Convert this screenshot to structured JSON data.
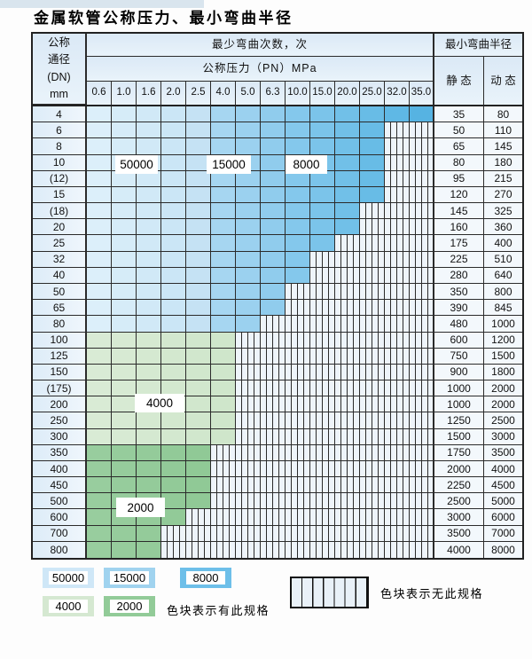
{
  "title": "金属软管公称压力、最小弯曲半径",
  "table": {
    "dn_header_lines": [
      "公称",
      "通径",
      "(DN)",
      "mm"
    ],
    "bend_times_header": "最少弯曲次数，次",
    "pn_header": "公称压力（PN）MPa",
    "radius_header": "最小弯曲半径",
    "static_label": "静 态",
    "dynamic_label": "动 态",
    "pressures": [
      "0.6",
      "1.0",
      "1.6",
      "2.0",
      "2.5",
      "4.0",
      "5.0",
      "6.3",
      "10.0",
      "15.0",
      "20.0",
      "25.0",
      "32.0",
      "35.0"
    ],
    "rows": [
      {
        "dn": "4",
        "max_col": 13,
        "zone": "blue",
        "static": "35",
        "dynamic": "80"
      },
      {
        "dn": "6",
        "max_col": 11,
        "zone": "blue",
        "static": "50",
        "dynamic": "110"
      },
      {
        "dn": "8",
        "max_col": 11,
        "zone": "blue",
        "static": "65",
        "dynamic": "145"
      },
      {
        "dn": "10",
        "max_col": 11,
        "zone": "blue",
        "static": "80",
        "dynamic": "180"
      },
      {
        "dn": "(12)",
        "max_col": 11,
        "zone": "blue",
        "static": "95",
        "dynamic": "215"
      },
      {
        "dn": "15",
        "max_col": 11,
        "zone": "blue",
        "static": "120",
        "dynamic": "270"
      },
      {
        "dn": "(18)",
        "max_col": 10,
        "zone": "blue",
        "static": "145",
        "dynamic": "325"
      },
      {
        "dn": "20",
        "max_col": 10,
        "zone": "blue",
        "static": "160",
        "dynamic": "360"
      },
      {
        "dn": "25",
        "max_col": 9,
        "zone": "blue",
        "static": "175",
        "dynamic": "400"
      },
      {
        "dn": "32",
        "max_col": 8,
        "zone": "blue",
        "static": "225",
        "dynamic": "510"
      },
      {
        "dn": "40",
        "max_col": 8,
        "zone": "blue",
        "static": "280",
        "dynamic": "640"
      },
      {
        "dn": "50",
        "max_col": 7,
        "zone": "blue",
        "static": "350",
        "dynamic": "800"
      },
      {
        "dn": "65",
        "max_col": 7,
        "zone": "blue",
        "static": "390",
        "dynamic": "845"
      },
      {
        "dn": "80",
        "max_col": 6,
        "zone": "blue",
        "static": "480",
        "dynamic": "1000"
      },
      {
        "dn": "100",
        "max_col": 5,
        "zone": "green_light",
        "static": "600",
        "dynamic": "1200"
      },
      {
        "dn": "125",
        "max_col": 5,
        "zone": "green_light",
        "static": "750",
        "dynamic": "1500"
      },
      {
        "dn": "150",
        "max_col": 5,
        "zone": "green_light",
        "static": "900",
        "dynamic": "1800"
      },
      {
        "dn": "(175)",
        "max_col": 5,
        "zone": "green_light",
        "static": "1000",
        "dynamic": "2000"
      },
      {
        "dn": "200",
        "max_col": 5,
        "zone": "green_light",
        "static": "1000",
        "dynamic": "2000"
      },
      {
        "dn": "250",
        "max_col": 5,
        "zone": "green_light",
        "static": "1250",
        "dynamic": "2500"
      },
      {
        "dn": "300",
        "max_col": 5,
        "zone": "green_light",
        "static": "1500",
        "dynamic": "3000"
      },
      {
        "dn": "350",
        "max_col": 4,
        "zone": "green_dark",
        "static": "1750",
        "dynamic": "3500"
      },
      {
        "dn": "400",
        "max_col": 4,
        "zone": "green_dark",
        "static": "2000",
        "dynamic": "4000"
      },
      {
        "dn": "450",
        "max_col": 4,
        "zone": "green_dark",
        "static": "2250",
        "dynamic": "4500"
      },
      {
        "dn": "500",
        "max_col": 4,
        "zone": "green_dark",
        "static": "2500",
        "dynamic": "5000"
      },
      {
        "dn": "600",
        "max_col": 3,
        "zone": "green_dark",
        "static": "3000",
        "dynamic": "6000"
      },
      {
        "dn": "700",
        "max_col": 2,
        "zone": "green_dark",
        "static": "3500",
        "dynamic": "7000"
      },
      {
        "dn": "800",
        "max_col": 2,
        "zone": "green_dark",
        "static": "4000",
        "dynamic": "8000"
      }
    ]
  },
  "zone_labels": [
    "50000",
    "15000",
    "8000",
    "4000",
    "2000"
  ],
  "legend": {
    "has_spec_items": [
      {
        "label": "50000",
        "color": "#cfe7f7"
      },
      {
        "label": "15000",
        "color": "#a0d3ef"
      },
      {
        "label": "8000",
        "color": "#6dbfe9"
      },
      {
        "label": "4000",
        "color": "#d5e8d1"
      },
      {
        "label": "2000",
        "color": "#92cb98"
      }
    ],
    "has_spec_text": "色块表示有此规格",
    "no_spec_text": "色块表示无此规格"
  },
  "colors": {
    "blue_scale": [
      "#dceffa",
      "#d6ecf8",
      "#d1e9f7",
      "#cbe6f6",
      "#c5e2f4",
      "#a6d6f1",
      "#9bd1ef",
      "#90cced",
      "#84c8ec",
      "#7bc4ea",
      "#71c0e8",
      "#68bce6",
      "#5fb8e5",
      "#56b3e2"
    ],
    "green_light_scale": [
      "#d9ebd5",
      "#d7ead3",
      "#d5e9d1",
      "#d3e8cf",
      "#d1e7cd",
      "#cfe6cb"
    ],
    "green_dark_scale": [
      "#98cd9e",
      "#96cc9c",
      "#94cb9a",
      "#92ca98",
      "#90c996"
    ],
    "no_spec_bg": "#eef4fa",
    "grid_line": "#2b2b2b"
  }
}
